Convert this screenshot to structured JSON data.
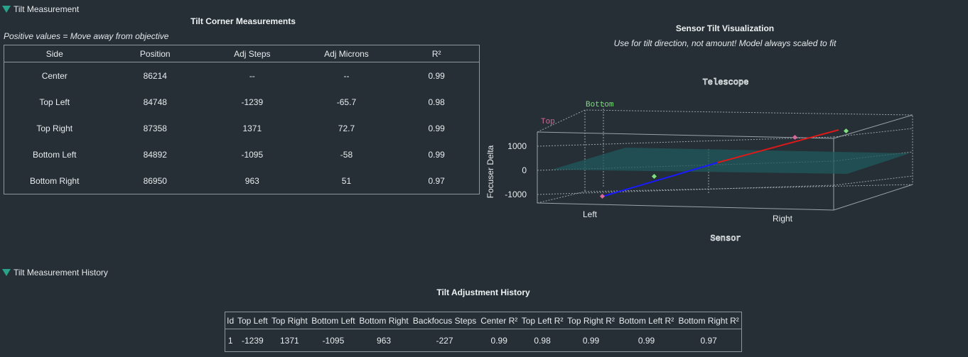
{
  "measurement_section": {
    "label": "Tilt Measurement"
  },
  "corner_table": {
    "title": "Tilt Corner Measurements",
    "note": "Positive values = Move away from objective",
    "headers": [
      "Side",
      "Position",
      "Adj Steps",
      "Adj Microns",
      "R²"
    ],
    "rows": [
      [
        "Center",
        "86214",
        "--",
        "--",
        "0.99"
      ],
      [
        "Top Left",
        "84748",
        "-1239",
        "-65.7",
        "0.98"
      ],
      [
        "Top Right",
        "87358",
        "1371",
        "72.7",
        "0.99"
      ],
      [
        "Bottom Left",
        "84892",
        "-1095",
        "-58",
        "0.99"
      ],
      [
        "Bottom Right",
        "86950",
        "963",
        "51",
        "0.97"
      ]
    ]
  },
  "visualization": {
    "title": "Sensor Tilt Visualization",
    "subtitle": "Use for tilt direction, not amount! Model always scaled to fit",
    "telescope_label": "Telescope",
    "sensor_label": "Sensor",
    "axis_label": "Focuser Delta",
    "ticks": [
      "1000",
      "0",
      "-1000"
    ],
    "top_label": "Top",
    "bottom_label": "Bottom",
    "left_label": "Left",
    "right_label": "Right",
    "colors": {
      "top": "#d8689a",
      "bottom": "#7ee07e",
      "plane": "#1f5a5c",
      "line_left": "#1a1aff",
      "line_right": "#e01818"
    }
  },
  "history_section": {
    "label": "Tilt Measurement History"
  },
  "history_table": {
    "title": "Tilt Adjustment History",
    "headers": [
      "Id",
      "Top Left",
      "Top Right",
      "Bottom Left",
      "Bottom Right",
      "Backfocus Steps",
      "Center R²",
      "Top Left R²",
      "Top Right R²",
      "Bottom Left R²",
      "Bottom Right R²"
    ],
    "rows": [
      [
        "1",
        "-1239",
        "1371",
        "-1095",
        "963",
        "-227",
        "0.99",
        "0.98",
        "0.99",
        "0.99",
        "0.97"
      ]
    ]
  }
}
